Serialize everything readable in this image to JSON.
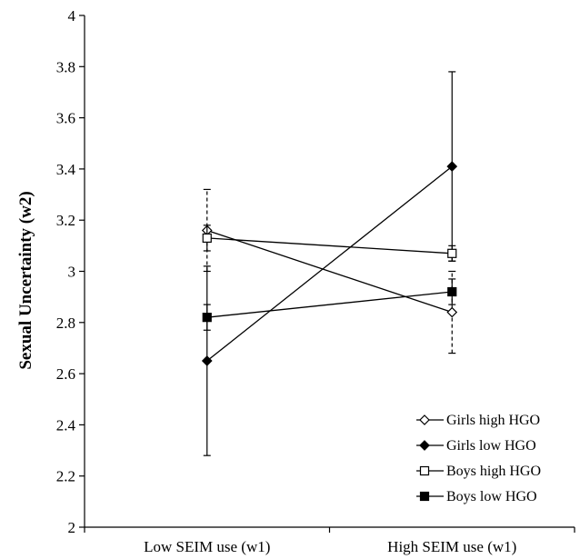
{
  "chart_data": {
    "type": "line",
    "title": "",
    "xlabel": "",
    "ylabel": "Sexual Uncertainty (w2)",
    "categories": [
      "Low SEIM use (w1)",
      "High SEIM use (w1)"
    ],
    "ylim": [
      2,
      4
    ],
    "yticks": [
      "2",
      "2.2",
      "2.4",
      "2.6",
      "2.8",
      "3",
      "3.2",
      "3.4",
      "3.6",
      "3.8",
      "4"
    ],
    "ytick_values": [
      2,
      2.2,
      2.4,
      2.6,
      2.8,
      3,
      3.2,
      3.4,
      3.6,
      3.8,
      4
    ],
    "grid": false,
    "legend_position": "bottom-right",
    "series": [
      {
        "name": "Girls high HGO",
        "marker": "open-diamond",
        "values": [
          3.16,
          2.84
        ],
        "error_lower": [
          3.0,
          2.68
        ],
        "error_upper": [
          3.32,
          3.0
        ],
        "error_style": "dashed"
      },
      {
        "name": "Girls low HGO",
        "marker": "filled-diamond",
        "values": [
          2.65,
          3.41
        ],
        "error_lower": [
          2.28,
          3.04
        ],
        "error_upper": [
          3.02,
          3.78
        ],
        "error_style": "solid"
      },
      {
        "name": "Boys high HGO",
        "marker": "open-square",
        "values": [
          3.13,
          3.07
        ],
        "error_lower": [
          3.08,
          3.04
        ],
        "error_upper": [
          3.18,
          3.1
        ],
        "error_style": "solid"
      },
      {
        "name": "Boys low HGO",
        "marker": "filled-square",
        "values": [
          2.82,
          2.92
        ],
        "error_lower": [
          2.77,
          2.87
        ],
        "error_upper": [
          2.87,
          2.97
        ],
        "error_style": "solid"
      }
    ]
  }
}
